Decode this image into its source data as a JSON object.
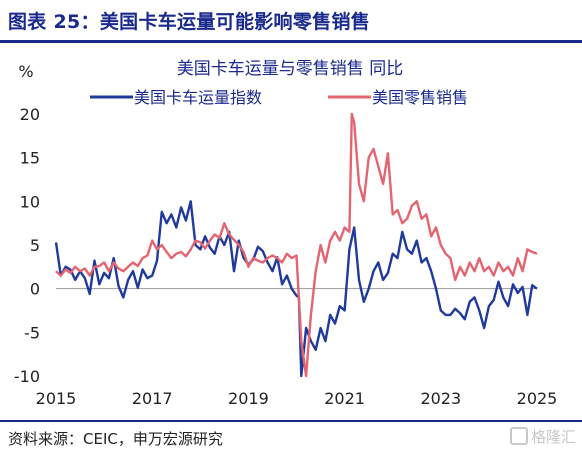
{
  "header": {
    "title": "图表 25：美国卡车运量可能影响零售销售"
  },
  "footer": {
    "source": "资料来源：CEIC，申万宏源研究",
    "watermark": "格隆汇"
  },
  "colors": {
    "brand": "#1a2a8c",
    "truck": "#1f3a9c",
    "retail": "#e46470"
  },
  "chart_data": {
    "type": "line",
    "title": "美国卡车运量与零售销售 同比",
    "unit_label": "%",
    "xlabel": "",
    "ylabel": "",
    "ylim": [
      -10,
      20
    ],
    "xlim": [
      2015.0,
      2025.0
    ],
    "yticks": [
      "20",
      "15",
      "10",
      "5",
      "0",
      "-5",
      "-10"
    ],
    "xticks": [
      "2015",
      "2017",
      "2019",
      "2021",
      "2023",
      "2025"
    ],
    "legend_position": "top-center",
    "grid": false,
    "series": [
      {
        "name": "美国卡车运量指数",
        "color": "#1f3a9c",
        "x": [
          2015.0,
          2015.1,
          2015.2,
          2015.3,
          2015.4,
          2015.5,
          2015.6,
          2015.7,
          2015.8,
          2015.9,
          2016.0,
          2016.1,
          2016.2,
          2016.3,
          2016.4,
          2016.5,
          2016.6,
          2016.7,
          2016.8,
          2016.9,
          2017.0,
          2017.1,
          2017.2,
          2017.3,
          2017.4,
          2017.5,
          2017.6,
          2017.7,
          2017.8,
          2017.9,
          2018.0,
          2018.1,
          2018.2,
          2018.3,
          2018.4,
          2018.5,
          2018.6,
          2018.7,
          2018.8,
          2018.9,
          2019.0,
          2019.1,
          2019.2,
          2019.3,
          2019.4,
          2019.5,
          2019.6,
          2019.7,
          2019.8,
          2019.9,
          2020.0,
          2020.05,
          2020.1,
          2020.2,
          2020.3,
          2020.4,
          2020.5,
          2020.6,
          2020.7,
          2020.8,
          2020.9,
          2021.0,
          2021.1,
          2021.2,
          2021.3,
          2021.4,
          2021.5,
          2021.6,
          2021.7,
          2021.8,
          2021.9,
          2022.0,
          2022.1,
          2022.2,
          2022.3,
          2022.4,
          2022.5,
          2022.6,
          2022.7,
          2022.8,
          2022.9,
          2023.0,
          2023.1,
          2023.2,
          2023.3,
          2023.4,
          2023.5,
          2023.6,
          2023.7,
          2023.8,
          2023.9,
          2024.0,
          2024.1,
          2024.2,
          2024.3,
          2024.4,
          2024.5,
          2024.6,
          2024.7,
          2024.8,
          2024.9,
          2025.0
        ],
        "values": [
          5.3,
          1.5,
          2.5,
          2.2,
          1.0,
          2.0,
          1.2,
          -0.6,
          3.2,
          0.5,
          1.8,
          1.2,
          3.5,
          0.3,
          -1.0,
          1.0,
          2.0,
          0.1,
          2.2,
          1.2,
          1.5,
          3.2,
          8.8,
          7.5,
          8.5,
          7.0,
          9.3,
          7.8,
          10.0,
          5.0,
          4.5,
          6.0,
          4.7,
          4.0,
          6.0,
          5.0,
          6.5,
          2.0,
          5.5,
          3.5,
          2.8,
          3.3,
          4.8,
          4.3,
          3.0,
          2.0,
          3.6,
          0.5,
          1.5,
          0.0,
          -0.8,
          -1.0,
          -10.0,
          -4.5,
          -6.0,
          -7.0,
          -4.5,
          -6.0,
          -3.0,
          -4.0,
          -2.0,
          -2.5,
          4.5,
          7.0,
          1.0,
          -1.5,
          0.0,
          2.0,
          3.0,
          1.0,
          1.8,
          4.0,
          3.5,
          6.5,
          4.5,
          4.0,
          5.5,
          3.0,
          3.5,
          2.0,
          0.0,
          -2.5,
          -3.0,
          -3.0,
          -2.3,
          -2.8,
          -3.5,
          -1.5,
          -1.0,
          -2.5,
          -4.5,
          -2.0,
          -1.3,
          0.8,
          -1.0,
          -2.0,
          0.5,
          -0.5,
          0.2,
          -3.0,
          0.4,
          0.0
        ]
      },
      {
        "name": "美国零售销售",
        "color": "#e46470",
        "x": [
          2015.0,
          2015.1,
          2015.2,
          2015.3,
          2015.4,
          2015.5,
          2015.6,
          2015.7,
          2015.8,
          2015.9,
          2016.0,
          2016.1,
          2016.2,
          2016.3,
          2016.4,
          2016.5,
          2016.6,
          2016.7,
          2016.8,
          2016.9,
          2017.0,
          2017.1,
          2017.2,
          2017.3,
          2017.4,
          2017.5,
          2017.6,
          2017.7,
          2017.8,
          2017.9,
          2018.0,
          2018.1,
          2018.2,
          2018.3,
          2018.4,
          2018.5,
          2018.6,
          2018.7,
          2018.8,
          2018.9,
          2019.0,
          2019.1,
          2019.2,
          2019.3,
          2019.4,
          2019.5,
          2019.6,
          2019.7,
          2019.8,
          2019.9,
          2020.0,
          2020.1,
          2020.2,
          2020.3,
          2020.4,
          2020.5,
          2020.6,
          2020.7,
          2020.8,
          2020.9,
          2021.0,
          2021.1,
          2021.15,
          2021.2,
          2021.3,
          2021.4,
          2021.5,
          2021.6,
          2021.7,
          2021.8,
          2021.9,
          2022.0,
          2022.1,
          2022.2,
          2022.3,
          2022.4,
          2022.5,
          2022.6,
          2022.7,
          2022.8,
          2022.9,
          2023.0,
          2023.1,
          2023.2,
          2023.3,
          2023.4,
          2023.5,
          2023.6,
          2023.7,
          2023.8,
          2023.9,
          2024.0,
          2024.1,
          2024.2,
          2024.3,
          2024.4,
          2024.5,
          2024.6,
          2024.7,
          2024.8,
          2024.9,
          2025.0
        ],
        "values": [
          2.0,
          1.5,
          2.2,
          1.8,
          2.5,
          2.0,
          2.3,
          1.5,
          2.5,
          2.6,
          3.0,
          2.0,
          3.0,
          2.3,
          2.0,
          2.5,
          3.0,
          2.6,
          3.5,
          3.8,
          5.5,
          4.5,
          5.0,
          4.2,
          3.5,
          4.0,
          4.2,
          3.7,
          4.5,
          5.5,
          5.3,
          4.6,
          5.5,
          6.2,
          5.8,
          7.5,
          6.2,
          5.6,
          5.0,
          4.2,
          2.5,
          3.5,
          3.2,
          3.0,
          3.5,
          3.8,
          3.5,
          3.0,
          4.0,
          3.5,
          3.8,
          -6.0,
          -10.0,
          -3.0,
          2.0,
          5.0,
          3.0,
          5.5,
          6.5,
          5.5,
          7.0,
          6.5,
          20.0,
          19.0,
          12.0,
          10.0,
          15.0,
          16.0,
          14.0,
          12.0,
          15.5,
          8.5,
          9.0,
          7.5,
          8.0,
          9.5,
          10.0,
          8.0,
          8.5,
          6.0,
          7.0,
          5.0,
          4.0,
          3.5,
          1.0,
          2.5,
          1.5,
          3.0,
          2.0,
          3.5,
          2.0,
          2.5,
          1.5,
          3.0,
          2.0,
          2.5,
          1.5,
          3.5,
          2.0,
          4.5,
          4.2,
          4.0
        ]
      }
    ]
  }
}
